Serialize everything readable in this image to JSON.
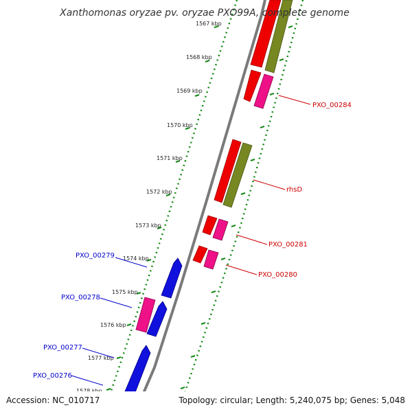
{
  "title": "Xanthomonas oryzae pv. oryzae PXO99A, complete genome",
  "footer": {
    "accession": "Accession: NC_010717",
    "topology": "Topology: circular; Length: 5,240,075 bp; Genes: 5,048"
  },
  "colors": {
    "axis": "#7a7a7a",
    "ticks": "#118811",
    "forward_red": "#ee0000",
    "forward_pink": "#ee1188",
    "olive": "#778822",
    "reverse_blue": "#1111dd",
    "label_red": "#cc0000",
    "label_blue": "#0000cc"
  },
  "ticks": [
    {
      "label": "1567 kbp"
    },
    {
      "label": "1568 kbp"
    },
    {
      "label": "1569 kbp"
    },
    {
      "label": "1570 kbp"
    },
    {
      "label": "1571 kbp"
    },
    {
      "label": "1572 kbp"
    },
    {
      "label": "1573 kbp"
    },
    {
      "label": "1574 kbp"
    },
    {
      "label": "1575 kbp"
    },
    {
      "label": "1576 kbp"
    },
    {
      "label": "1577 kbp"
    },
    {
      "label": "1578 kbp"
    }
  ],
  "gene_labels": {
    "right": [
      "PXO_00284",
      "rhsD",
      "PXO_00281",
      "PXO_00280"
    ],
    "left": [
      "PXO_00279",
      "PXO_00278",
      "PXO_00277",
      "PXO_00276"
    ]
  }
}
